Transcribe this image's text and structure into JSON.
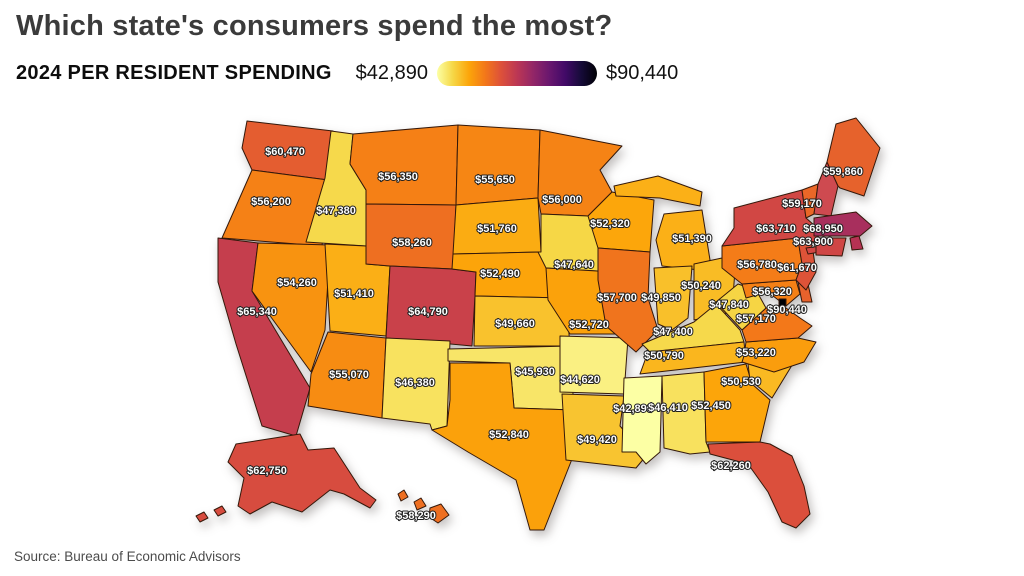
{
  "header": {
    "title": "Which state's consumers spend the most?",
    "subtitle": "2024 PER RESIDENT SPENDING"
  },
  "legend": {
    "min_label": "$42,890",
    "max_label": "$90,440",
    "min_value": 42890,
    "max_value": 90440,
    "colormap": [
      "#FCFFA4",
      "#F6D746",
      "#FCA50A",
      "#F37819",
      "#DD513A",
      "#BC3754",
      "#932667",
      "#6A176E",
      "#420A68",
      "#160B39",
      "#000004"
    ]
  },
  "source": {
    "text": "Source: Bureau of Economic Advisors"
  },
  "chart_data": {
    "type": "heatmap",
    "subtype": "us-choropleth-map",
    "title": "Which state's consumers spend the most?",
    "subtitle": "2024 PER RESIDENT SPENDING",
    "unit": "USD per resident",
    "range": [
      42890,
      90440
    ],
    "legend_position": "top",
    "states": [
      {
        "id": "WA",
        "name": "Washington",
        "label": "$60,470",
        "value": 60470
      },
      {
        "id": "OR",
        "name": "Oregon",
        "label": "$56,200",
        "value": 56200
      },
      {
        "id": "CA",
        "name": "California",
        "label": "$65,340",
        "value": 65340
      },
      {
        "id": "ID",
        "name": "Idaho",
        "label": "$47,380",
        "value": 47380
      },
      {
        "id": "NV",
        "name": "Nevada",
        "label": "$54,260",
        "value": 54260
      },
      {
        "id": "UT",
        "name": "Utah",
        "label": "$51,410",
        "value": 51410
      },
      {
        "id": "AZ",
        "name": "Arizona",
        "label": "$55,070",
        "value": 55070
      },
      {
        "id": "MT",
        "name": "Montana",
        "label": "$56,350",
        "value": 56350
      },
      {
        "id": "WY",
        "name": "Wyoming",
        "label": "$58,260",
        "value": 58260
      },
      {
        "id": "CO",
        "name": "Colorado",
        "label": "$64,790",
        "value": 64790
      },
      {
        "id": "NM",
        "name": "New Mexico",
        "label": "$46,380",
        "value": 46380
      },
      {
        "id": "ND",
        "name": "North Dakota",
        "label": "$55,650",
        "value": 55650
      },
      {
        "id": "SD",
        "name": "South Dakota",
        "label": "$51,760",
        "value": 51760
      },
      {
        "id": "NE",
        "name": "Nebraska",
        "label": "$52,490",
        "value": 52490
      },
      {
        "id": "KS",
        "name": "Kansas",
        "label": "$49,660",
        "value": 49660
      },
      {
        "id": "OK",
        "name": "Oklahoma",
        "label": "$45,930",
        "value": 45930
      },
      {
        "id": "TX",
        "name": "Texas",
        "label": "$52,840",
        "value": 52840
      },
      {
        "id": "MN",
        "name": "Minnesota",
        "label": "$56,000",
        "value": 56000
      },
      {
        "id": "IA",
        "name": "Iowa",
        "label": "$47,640",
        "value": 47640
      },
      {
        "id": "MO",
        "name": "Missouri",
        "label": "$52,720",
        "value": 52720
      },
      {
        "id": "AR",
        "name": "Arkansas",
        "label": "$44,620",
        "value": 44620
      },
      {
        "id": "LA",
        "name": "Louisiana",
        "label": "$49,420",
        "value": 49420
      },
      {
        "id": "WI",
        "name": "Wisconsin",
        "label": "$52,320",
        "value": 52320
      },
      {
        "id": "IL",
        "name": "Illinois",
        "label": "$57,700",
        "value": 57700
      },
      {
        "id": "MI",
        "name": "Michigan",
        "label": "$51,390",
        "value": 51390
      },
      {
        "id": "IN",
        "name": "Indiana",
        "label": "$49,850",
        "value": 49850
      },
      {
        "id": "OH",
        "name": "Ohio",
        "label": "$50,240",
        "value": 50240
      },
      {
        "id": "KY",
        "name": "Kentucky",
        "label": "$47,400",
        "value": 47400
      },
      {
        "id": "TN",
        "name": "Tennessee",
        "label": "$50,790",
        "value": 50790
      },
      {
        "id": "MS",
        "name": "Mississippi",
        "label": "$42,890",
        "value": 42890
      },
      {
        "id": "AL",
        "name": "Alabama",
        "label": "$46,410",
        "value": 46410
      },
      {
        "id": "GA",
        "name": "Georgia",
        "label": "$52,450",
        "value": 52450
      },
      {
        "id": "FL",
        "name": "Florida",
        "label": "$62,260",
        "value": 62260
      },
      {
        "id": "SC",
        "name": "South Carolina",
        "label": "$50,530",
        "value": 50530
      },
      {
        "id": "NC",
        "name": "North Carolina",
        "label": "$53,220",
        "value": 53220
      },
      {
        "id": "VA",
        "name": "Virginia",
        "label": "$57,170",
        "value": 57170
      },
      {
        "id": "WV",
        "name": "West Virginia",
        "label": "$47,840",
        "value": 47840
      },
      {
        "id": "MD",
        "name": "Maryland",
        "label": "$56,320",
        "value": 56320
      },
      {
        "id": "DE",
        "name": "Delaware",
        "label": null,
        "value": null,
        "fill": "#E8622C"
      },
      {
        "id": "DC",
        "name": "District of Columbia",
        "label": "$90,440",
        "value": 90440
      },
      {
        "id": "PA",
        "name": "Pennsylvania",
        "label": "$56,780",
        "value": 56780
      },
      {
        "id": "NJ",
        "name": "New Jersey",
        "label": "$61,670",
        "value": 61670
      },
      {
        "id": "NY",
        "name": "New York",
        "label": "$63,710",
        "value": 63710
      },
      {
        "id": "VT",
        "name": "Vermont",
        "label": "$59,170",
        "value": 59170
      },
      {
        "id": "NH",
        "name": "New Hampshire",
        "label": null,
        "value": null,
        "fill": "#CE4A50"
      },
      {
        "id": "MA",
        "name": "Massachusetts",
        "label": "$68,950",
        "value": 68950
      },
      {
        "id": "RI",
        "name": "Rhode Island",
        "label": null,
        "value": null,
        "fill": "#B63253"
      },
      {
        "id": "CT",
        "name": "Connecticut",
        "label": "$63,900",
        "value": 63900
      },
      {
        "id": "ME",
        "name": "Maine",
        "label": "$59,860",
        "value": 59860
      },
      {
        "id": "AK",
        "name": "Alaska",
        "label": "$62,750",
        "value": 62750
      },
      {
        "id": "HI",
        "name": "Hawaii",
        "label": "$58,290",
        "value": 58290
      }
    ]
  }
}
